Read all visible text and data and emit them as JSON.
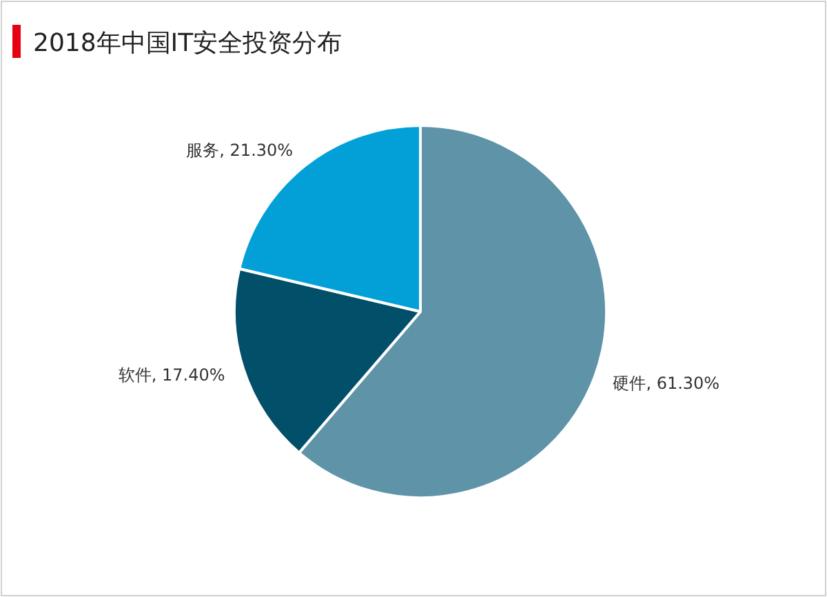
{
  "chart_data": {
    "type": "pie",
    "title": "2018年中国IT安全投资分布",
    "categories": [
      "硬件",
      "软件",
      "服务"
    ],
    "values": [
      61.3,
      17.4,
      21.3
    ],
    "value_labels": [
      "61.30%",
      "17.40%",
      "21.30%"
    ],
    "colors": [
      "#5e93a8",
      "#024f6a",
      "#03a0d8"
    ]
  }
}
